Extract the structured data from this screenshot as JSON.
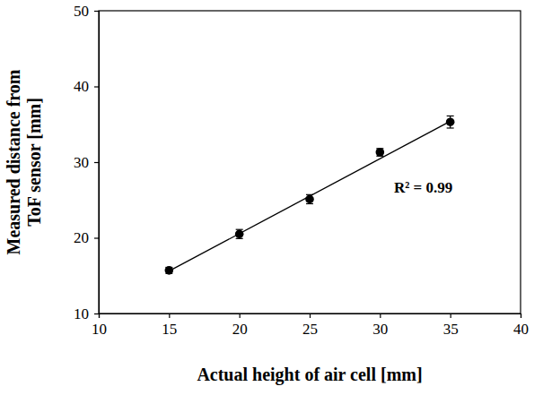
{
  "chart_data": {
    "type": "scatter",
    "x_label": "Actual height of air cell [mm]",
    "y_label": "Measured distance from ToF sensor [mm]",
    "annotation": "R² = 0.99",
    "xlim": [
      10,
      40
    ],
    "xticks": [
      10,
      15,
      20,
      25,
      30,
      35,
      40
    ],
    "ylim": [
      10,
      50
    ],
    "yticks": [
      10,
      20,
      30,
      40,
      50
    ],
    "grid": false,
    "series": [
      {
        "type": "scatter",
        "color": "#000000",
        "marker": "circle",
        "x": [
          15,
          20,
          25,
          30,
          35
        ],
        "values": [
          15.7,
          20.5,
          25.1,
          31.3,
          35.3
        ],
        "errors": [
          0.4,
          0.6,
          0.6,
          0.5,
          0.8
        ]
      },
      {
        "type": "line",
        "color": "#000000",
        "line_style": "solid",
        "x": [
          15,
          35
        ],
        "values": [
          15.6,
          35.4
        ]
      }
    ]
  }
}
